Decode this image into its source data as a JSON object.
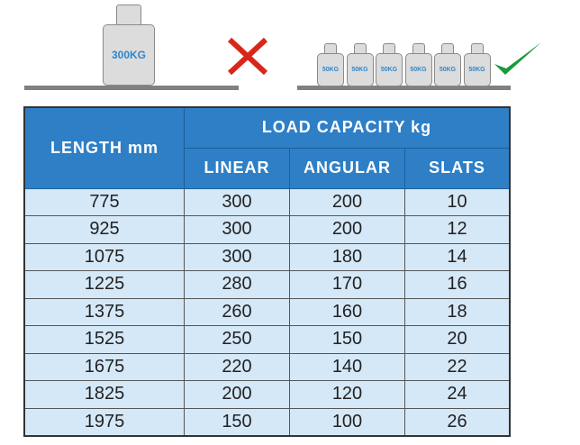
{
  "illustration": {
    "single_weight_label": "300KG",
    "small_weight_labels": [
      "50KG",
      "50KG",
      "50KG",
      "50KG",
      "50KG",
      "50KG"
    ],
    "wrong_icon": "cross-icon",
    "right_icon": "check-icon",
    "colors": {
      "cross": "#d9261c",
      "check": "#1a9a3a",
      "weight_text": "#2f86c8"
    }
  },
  "table": {
    "header": {
      "length": "LENGTH mm",
      "load_capacity": "LOAD CAPACITY kg",
      "linear": "LINEAR",
      "angular": "ANGULAR",
      "slats": "SLATS"
    },
    "rows": [
      [
        "775",
        "300",
        "200",
        "10"
      ],
      [
        "925",
        "300",
        "200",
        "12"
      ],
      [
        "1075",
        "300",
        "180",
        "14"
      ],
      [
        "1225",
        "280",
        "170",
        "16"
      ],
      [
        "1375",
        "260",
        "160",
        "18"
      ],
      [
        "1525",
        "250",
        "150",
        "20"
      ],
      [
        "1675",
        "220",
        "140",
        "22"
      ],
      [
        "1825",
        "200",
        "120",
        "24"
      ],
      [
        "1975",
        "150",
        "100",
        "26"
      ]
    ],
    "colors": {
      "header": "#2e7fc6",
      "body": "#d5e8f8"
    }
  }
}
